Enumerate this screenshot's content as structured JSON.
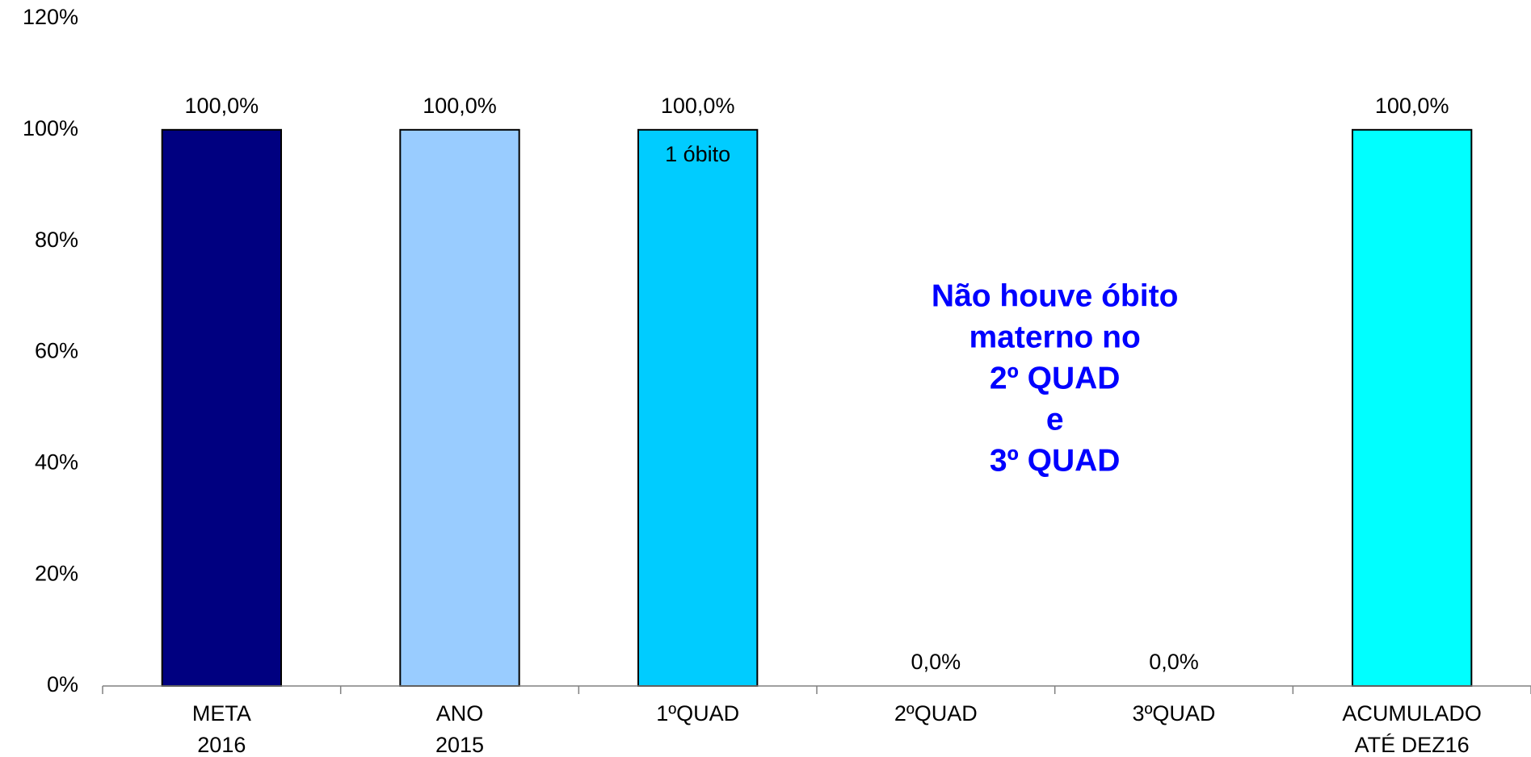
{
  "chart_data": {
    "type": "bar",
    "categories": [
      [
        "META",
        "2016"
      ],
      [
        "ANO",
        "2015"
      ],
      [
        "1ºQUAD"
      ],
      [
        "2ºQUAD"
      ],
      [
        "3ºQUAD"
      ],
      [
        "ACUMULADO",
        "ATÉ DEZ16"
      ]
    ],
    "values": [
      100,
      100,
      100,
      0,
      0,
      100
    ],
    "value_labels": [
      "100,0%",
      "100,0%",
      "100,0%",
      "0,0%",
      "0,0%",
      "100,0%"
    ],
    "colors": [
      "#000080",
      "#99ccff",
      "#00ccff",
      "#00ccff",
      "#00ccff",
      "#00ffff"
    ],
    "ylim": [
      0,
      120
    ],
    "yticks": [
      {
        "value": 0,
        "label": "0%"
      },
      {
        "value": 20,
        "label": "20%"
      },
      {
        "value": 40,
        "label": "40%"
      },
      {
        "value": 60,
        "label": "60%"
      },
      {
        "value": 80,
        "label": "80%"
      },
      {
        "value": 100,
        "label": "100%"
      },
      {
        "value": 120,
        "label": "120%"
      }
    ],
    "grid": false,
    "bar_note": "1 óbito",
    "note_lines": [
      "Não houve óbito",
      "materno no",
      "2º QUAD",
      "e",
      "3º QUAD"
    ],
    "note_color": "#0000ff"
  }
}
